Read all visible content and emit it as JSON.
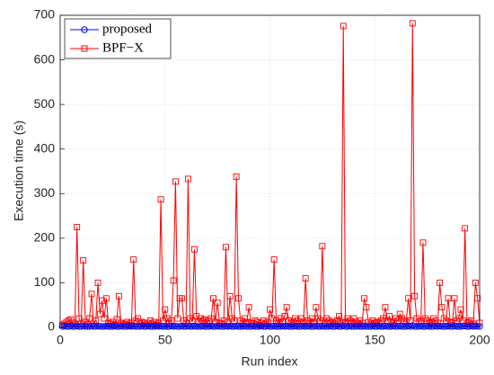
{
  "chart_data": {
    "type": "line",
    "xlabel": "Run index",
    "ylabel": "Execution time (s)",
    "xlim": [
      0,
      200
    ],
    "ylim": [
      0,
      700
    ],
    "xticks": [
      0,
      50,
      100,
      150,
      200
    ],
    "yticks": [
      0,
      100,
      200,
      300,
      400,
      500,
      600,
      700
    ],
    "grid": true,
    "legend": "upper left",
    "x": [
      1,
      2,
      3,
      4,
      5,
      6,
      7,
      8,
      9,
      10,
      11,
      12,
      13,
      14,
      15,
      16,
      17,
      18,
      19,
      20,
      21,
      22,
      23,
      24,
      25,
      26,
      27,
      28,
      29,
      30,
      31,
      32,
      33,
      34,
      35,
      36,
      37,
      38,
      39,
      40,
      41,
      42,
      43,
      44,
      45,
      46,
      47,
      48,
      49,
      50,
      51,
      52,
      53,
      54,
      55,
      56,
      57,
      58,
      59,
      60,
      61,
      62,
      63,
      64,
      65,
      66,
      67,
      68,
      69,
      70,
      71,
      72,
      73,
      74,
      75,
      76,
      77,
      78,
      79,
      80,
      81,
      82,
      83,
      84,
      85,
      86,
      87,
      88,
      89,
      90,
      91,
      92,
      93,
      94,
      95,
      96,
      97,
      98,
      99,
      100,
      101,
      102,
      103,
      104,
      105,
      106,
      107,
      108,
      109,
      110,
      111,
      112,
      113,
      114,
      115,
      116,
      117,
      118,
      119,
      120,
      121,
      122,
      123,
      124,
      125,
      126,
      127,
      128,
      129,
      130,
      131,
      132,
      133,
      134,
      135,
      136,
      137,
      138,
      139,
      140,
      141,
      142,
      143,
      144,
      145,
      146,
      147,
      148,
      149,
      150,
      151,
      152,
      153,
      154,
      155,
      156,
      157,
      158,
      159,
      160,
      161,
      162,
      163,
      164,
      165,
      166,
      167,
      168,
      169,
      170,
      171,
      172,
      173,
      174,
      175,
      176,
      177,
      178,
      179,
      180,
      181,
      182,
      183,
      184,
      185,
      186,
      187,
      188,
      189,
      190,
      191,
      192,
      193,
      194,
      195,
      196,
      197,
      198,
      199,
      200
    ],
    "series": [
      {
        "name": "proposed",
        "color": "#0000ff",
        "marker": "circle",
        "values": [
          2,
          3,
          2,
          2,
          3,
          2,
          2,
          3,
          2,
          2,
          3,
          2,
          2,
          2,
          3,
          2,
          2,
          3,
          2,
          2,
          2,
          3,
          2,
          2,
          2,
          3,
          2,
          2,
          3,
          2,
          2,
          2,
          3,
          2,
          3,
          2,
          2,
          2,
          3,
          2,
          2,
          3,
          2,
          2,
          2,
          3,
          2,
          3,
          2,
          2,
          2,
          2,
          3,
          2,
          3,
          2,
          2,
          3,
          2,
          2,
          3,
          2,
          2,
          3,
          2,
          2,
          2,
          3,
          2,
          2,
          2,
          3,
          2,
          2,
          3,
          2,
          2,
          2,
          3,
          2,
          3,
          2,
          2,
          3,
          2,
          2,
          2,
          3,
          2,
          2,
          2,
          3,
          2,
          2,
          2,
          3,
          2,
          2,
          3,
          2,
          2,
          3,
          2,
          2,
          2,
          3,
          2,
          3,
          2,
          2,
          2,
          3,
          2,
          2,
          2,
          3,
          2,
          3,
          2,
          2,
          2,
          3,
          2,
          2,
          3,
          2,
          2,
          2,
          3,
          2,
          2,
          3,
          2,
          2,
          4,
          2,
          2,
          3,
          2,
          2,
          2,
          3,
          2,
          2,
          3,
          2,
          2,
          2,
          3,
          2,
          2,
          3,
          2,
          2,
          3,
          2,
          2,
          2,
          3,
          2,
          2,
          3,
          2,
          2,
          2,
          3,
          2,
          4,
          2,
          2,
          2,
          3,
          2,
          2,
          3,
          2,
          2,
          2,
          3,
          2,
          3,
          2,
          2,
          2,
          3,
          2,
          2,
          3,
          2,
          2,
          2,
          3,
          3,
          2,
          2,
          3,
          2,
          3,
          2,
          2
        ]
      },
      {
        "name": "BPF−X",
        "color": "#ff0000",
        "marker": "square",
        "values": [
          5,
          8,
          12,
          15,
          18,
          10,
          6,
          225,
          20,
          8,
          150,
          12,
          6,
          20,
          75,
          8,
          15,
          100,
          30,
          60,
          20,
          65,
          10,
          8,
          12,
          5,
          18,
          70,
          10,
          6,
          8,
          12,
          5,
          10,
          152,
          15,
          20,
          8,
          12,
          10,
          6,
          10,
          15,
          8,
          12,
          5,
          10,
          287,
          15,
          40,
          20,
          10,
          15,
          105,
          327,
          20,
          65,
          65,
          15,
          10,
          333,
          20,
          15,
          175,
          25,
          12,
          20,
          15,
          18,
          10,
          15,
          20,
          65,
          12,
          55,
          10,
          8,
          15,
          180,
          12,
          70,
          20,
          15,
          338,
          65,
          15,
          10,
          20,
          12,
          45,
          10,
          8,
          15,
          12,
          5,
          10,
          15,
          8,
          12,
          40,
          20,
          152,
          15,
          10,
          20,
          12,
          25,
          45,
          15,
          10,
          12,
          20,
          15,
          8,
          20,
          12,
          110,
          15,
          10,
          20,
          12,
          45,
          20,
          15,
          182,
          10,
          20,
          15,
          10,
          12,
          8,
          15,
          25,
          10,
          676,
          12,
          20,
          15,
          10,
          20,
          12,
          8,
          15,
          10,
          65,
          45,
          12,
          8,
          15,
          10,
          12,
          10,
          15,
          20,
          45,
          15,
          25,
          12,
          10,
          20,
          15,
          30,
          20,
          15,
          12,
          65,
          15,
          682,
          70,
          20,
          12,
          15,
          190,
          20,
          15,
          10,
          12,
          20,
          15,
          10,
          100,
          45,
          20,
          15,
          65,
          12,
          10,
          65,
          15,
          20,
          40,
          15,
          222,
          10,
          12,
          15,
          8,
          100,
          65,
          10
        ]
      }
    ]
  }
}
